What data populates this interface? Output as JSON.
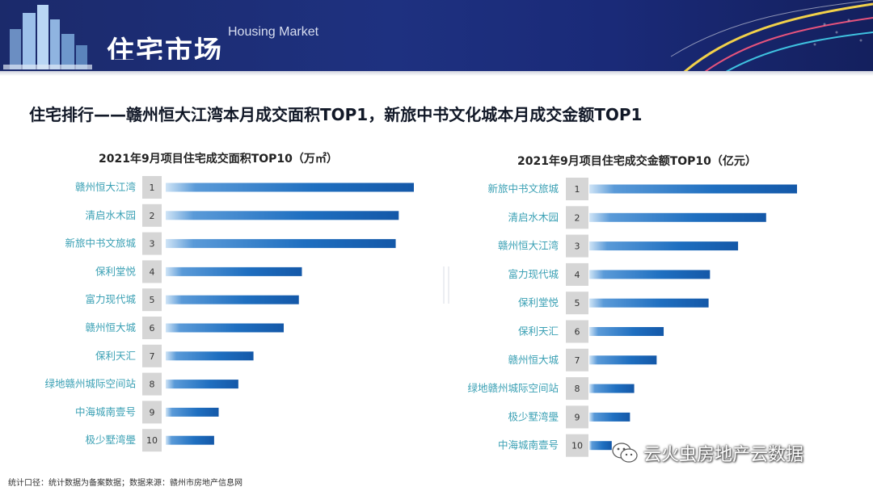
{
  "header": {
    "title_partial": "住宅市场",
    "subtitle": "Housing Market"
  },
  "headline": "住宅排行——赣州恒大江湾本月成交面积TOP1，新旅中书文化城本月成交金额TOP1",
  "chart_data": [
    {
      "type": "bar",
      "orientation": "horizontal",
      "title": "2021年9月项目住宅成交面积TOP10（万㎡）",
      "categories": [
        "赣州恒大江湾",
        "清启水木园",
        "新旅中书文旅城",
        "保利堂悦",
        "富力现代城",
        "赣州恒大城",
        "保利天汇",
        "绿地赣州城际空间站",
        "中海城南壹号",
        "极少墅湾璺"
      ],
      "ranks": [
        "1",
        "2",
        "3",
        "4",
        "5",
        "6",
        "7",
        "8",
        "9",
        "10"
      ],
      "values": [
        8.2,
        7.7,
        7.6,
        4.5,
        4.4,
        3.9,
        2.9,
        2.4,
        1.75,
        1.6
      ],
      "xlim": [
        0,
        8.2
      ],
      "color": "#1f6fc0"
    },
    {
      "type": "bar",
      "orientation": "horizontal",
      "title": "2021年9月项目住宅成交金额TOP10（亿元）",
      "categories": [
        "新旅中书文旅城",
        "清启水木园",
        "赣州恒大江湾",
        "富力现代城",
        "保利堂悦",
        "保利天汇",
        "赣州恒大城",
        "绿地赣州城际空间站",
        "极少墅湾璺",
        "中海城南壹号"
      ],
      "ranks": [
        "1",
        "2",
        "3",
        "4",
        "5",
        "6",
        "7",
        "8",
        "9",
        "10"
      ],
      "values": [
        7.4,
        6.3,
        5.3,
        4.3,
        4.25,
        2.65,
        2.4,
        1.6,
        1.45,
        0.8
      ],
      "xlim": [
        0,
        7.4
      ],
      "color": "#1f6fc0"
    }
  ],
  "footnote": "统计口径：统计数据为备案数据；数据来源：赣州市房地产信息网",
  "watermark": {
    "icon": "wechat-icon",
    "text": "云火虫房地产云数据"
  }
}
